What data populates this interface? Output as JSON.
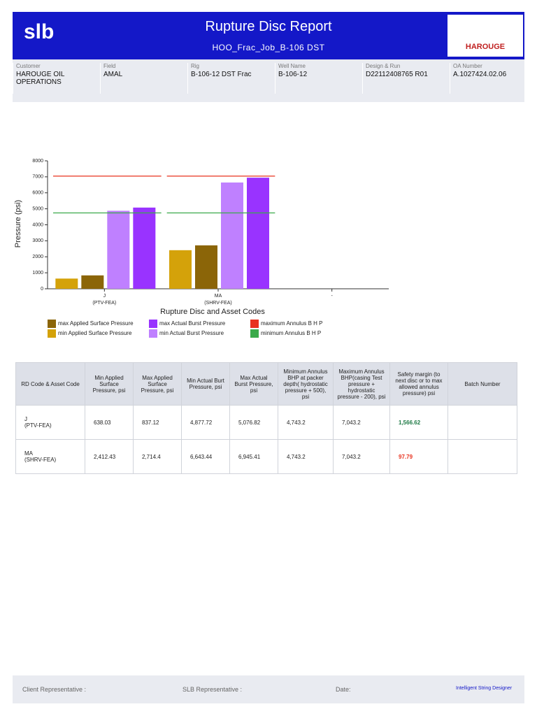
{
  "header": {
    "title": "Rupture Disc Report",
    "subtitle": "HOO_Frac_Job_B-106 DST",
    "logo": "slb",
    "partner_logo": "HAROUGE"
  },
  "info": [
    {
      "label": "Customer",
      "value": "HAROUGE OIL OPERATIONS"
    },
    {
      "label": "Field",
      "value": "AMAL"
    },
    {
      "label": "Rig",
      "value": "B-106-12 DST Frac"
    },
    {
      "label": "Well Name",
      "value": "B-106-12"
    },
    {
      "label": "Design & Run",
      "value": "D22112408765 R01"
    },
    {
      "label": "OA Number",
      "value": "A.1027424.02.06"
    }
  ],
  "chart_data": {
    "type": "bar",
    "ylabel": "Pressure (psi)",
    "xlabel": "Rupture Disc and Asset Codes",
    "categories": [
      "J",
      "MA",
      "-"
    ],
    "category_codes": [
      "(PTV-FEA)",
      "(SHRV-FEA)",
      null
    ],
    "ylim": [
      0,
      8000
    ],
    "yticks": [
      0,
      1000,
      2000,
      3000,
      4000,
      5000,
      6000,
      7000,
      8000
    ],
    "series": [
      {
        "name": "min Applied Surface Pressure",
        "color": "#d4a20a",
        "values": [
          638.03,
          2412.43,
          null
        ]
      },
      {
        "name": "max Applied Surface Pressure",
        "color": "#8b6508",
        "values": [
          837.12,
          2714.4,
          null
        ]
      },
      {
        "name": "min Actual Burst Pressure",
        "color": "#bf80ff",
        "values": [
          4877.72,
          6643.44,
          null
        ]
      },
      {
        "name": "max Actual Burst Pressure",
        "color": "#9933ff",
        "values": [
          5076.82,
          6945.41,
          null
        ]
      },
      {
        "name": "minimum Annulus B H P",
        "color": "#3aaa4a",
        "type": "line",
        "values": [
          4743.2,
          4743.2,
          null
        ]
      },
      {
        "name": "maximum Annulus B H P",
        "color": "#e8321e",
        "type": "line",
        "values": [
          7043.2,
          7043.2,
          null
        ]
      }
    ]
  },
  "table": {
    "headers": [
      "RD Code & Asset Code",
      "Min Applied Surface Pressure, psi",
      "Max Applied Surface Pressure, psi",
      "Min Actual Burt Pressure, psi",
      "Max Actual Burst Pressure, psi",
      "Minimum Annulus BHP at packer depth( hydrostatic pressure + 500), psi",
      "Maximum Annulus BHP(casing Test pressure + hydrostatic pressure - 200), psi",
      "Safety margin (to next disc or to max allowed annulus pressure) psi",
      "Batch Number"
    ],
    "rows": [
      {
        "cells": [
          "J\n(PTV-FEA)",
          "638.03",
          "837.12",
          "4,877.72",
          "5,076.82",
          "4,743.2",
          "7,043.2",
          "1,566.62"
        ],
        "margin_color": "#1e7a45"
      },
      {
        "cells": [
          "MA\n(SHRV-FEA)",
          "2,412.43",
          "2,714.4",
          "6,643.44",
          "6,945.41",
          "4,743.2",
          "7,043.2",
          "97.79"
        ],
        "margin_color": "#e8321e"
      }
    ]
  },
  "footer": {
    "client": "Client Representative :",
    "slb": "SLB Representative :",
    "date": "Date:",
    "brand": "Intelligent String Designer"
  }
}
